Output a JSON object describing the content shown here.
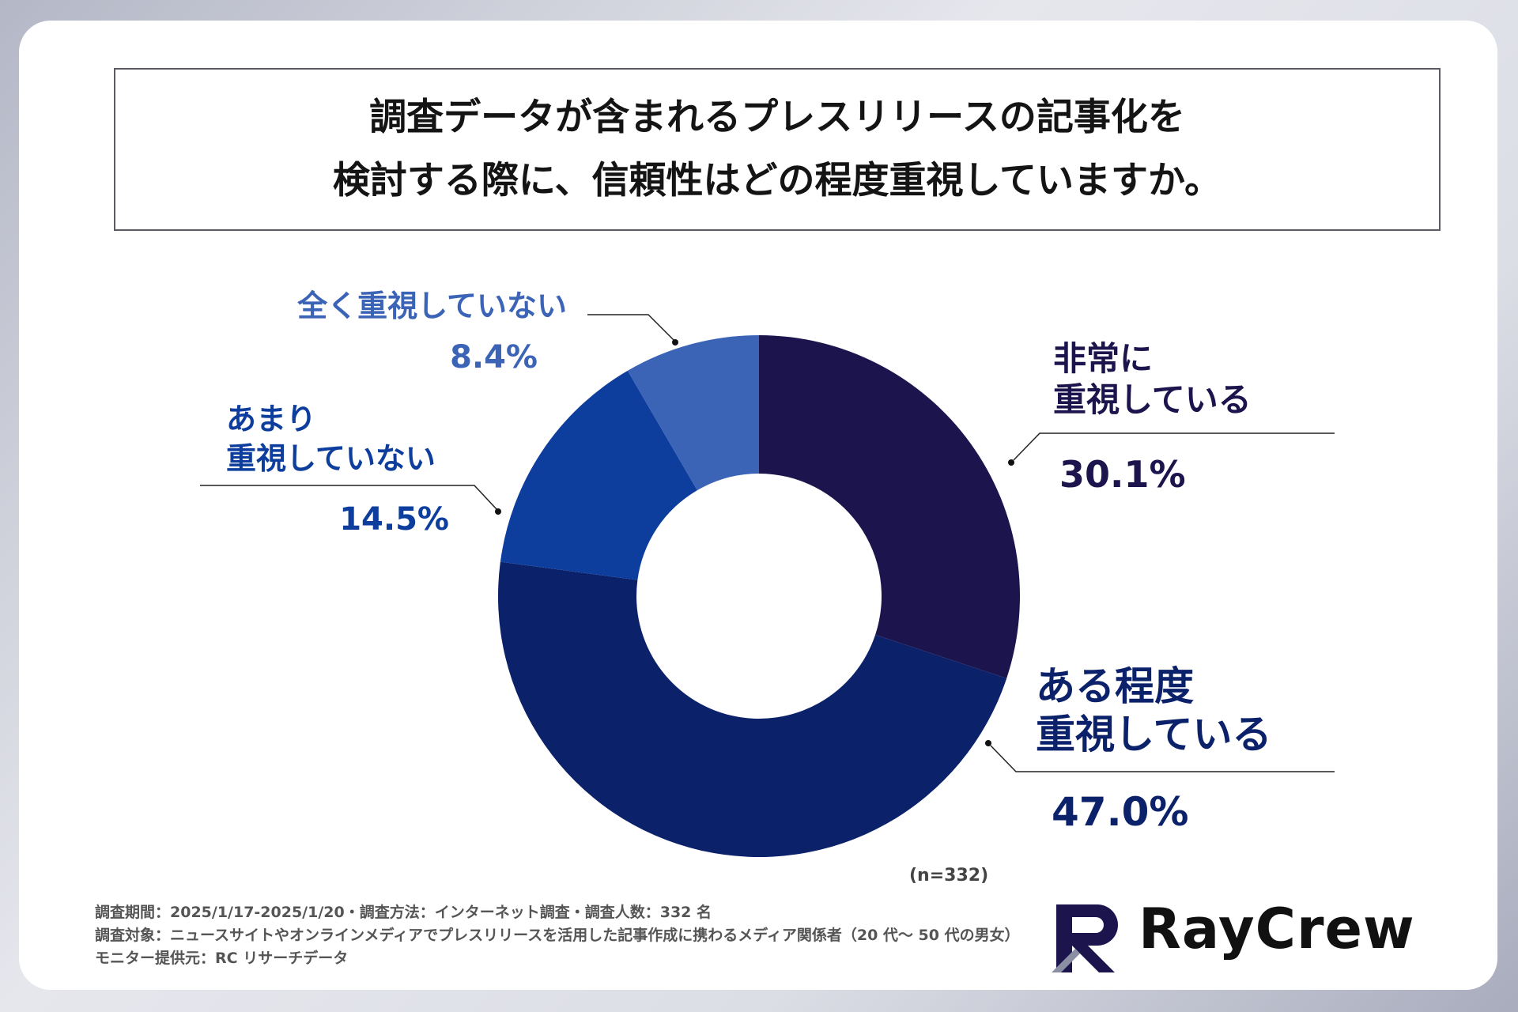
{
  "title": {
    "line1": "調査データが含まれるプレスリリースの記事化を",
    "line2": "検討する際に、信頼性はどの程度重視していますか。"
  },
  "chart_data": {
    "type": "pie",
    "donut": true,
    "title": "調査データが含まれるプレスリリースの記事化を検討する際に、信頼性はどの程度重視していますか。",
    "slices": [
      {
        "label_lines": [
          "非常に",
          "重視している"
        ],
        "value": 30.1,
        "display": "30.1%",
        "color": "#1c154d"
      },
      {
        "label_lines": [
          "ある程度",
          "重視している"
        ],
        "value": 47.0,
        "display": "47.0%",
        "color": "#0b226b"
      },
      {
        "label_lines": [
          "あまり",
          "重視していない"
        ],
        "value": 14.5,
        "display": "14.5%",
        "color": "#0d3e9e"
      },
      {
        "label_lines": [
          "全く重視していない"
        ],
        "value": 8.4,
        "display": "8.4%",
        "color": "#3b64b7"
      }
    ],
    "sample_note": "(n=332)"
  },
  "footer": {
    "line1": "調査期間：2025/1/17-2025/1/20・調査方法：インターネット調査・調査人数：332 名",
    "line2": "調査対象：ニュースサイトやオンラインメディアでプレスリリースを活用した記事作成に携わるメディア関係者（20 代〜 50 代の男女）",
    "line3": "モニター提供元：RC リサーチデータ"
  },
  "logo": {
    "name": "RayCrew"
  }
}
